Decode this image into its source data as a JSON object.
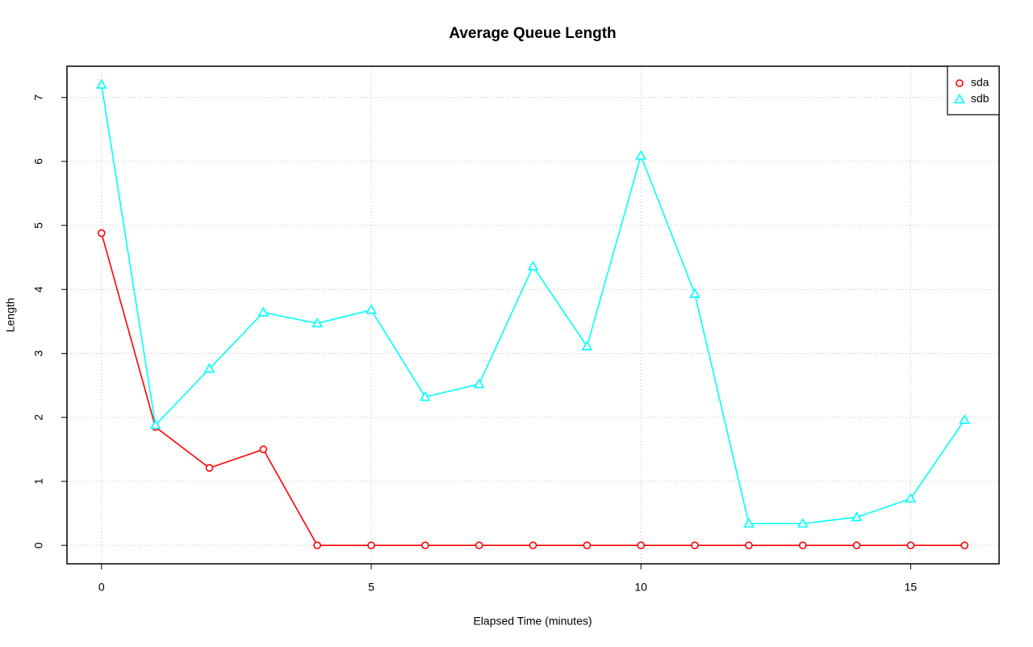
{
  "chart_data": {
    "type": "line",
    "title": "Average Queue Length",
    "x_label": "Elapsed Time (minutes)",
    "y_label": "Length",
    "x": [
      0,
      1,
      2,
      3,
      4,
      5,
      6,
      7,
      8,
      9,
      10,
      11,
      12,
      13,
      14,
      15,
      16
    ],
    "series": [
      {
        "name": "sda",
        "color": "#ff0000",
        "marker": "circle",
        "values": [
          4.88,
          1.85,
          1.21,
          1.5,
          0,
          0,
          0,
          0,
          0,
          0,
          0,
          0,
          0,
          0,
          0,
          0,
          0
        ]
      },
      {
        "name": "sdb",
        "color": "#00ffff",
        "marker": "triangle",
        "values": [
          7.2,
          1.88,
          2.76,
          3.64,
          3.47,
          3.68,
          2.32,
          2.52,
          4.36,
          3.11,
          6.09,
          3.93,
          0.34,
          0.34,
          0.44,
          0.73,
          1.96
        ]
      }
    ],
    "xlim": [
      -0.64,
      16.64
    ],
    "xticks": [
      0,
      5,
      10,
      15
    ],
    "ylim": [
      -0.288,
      7.488
    ],
    "yticks": [
      0,
      1,
      2,
      3,
      4,
      5,
      6,
      7
    ],
    "grid": true,
    "legend": "topright"
  }
}
